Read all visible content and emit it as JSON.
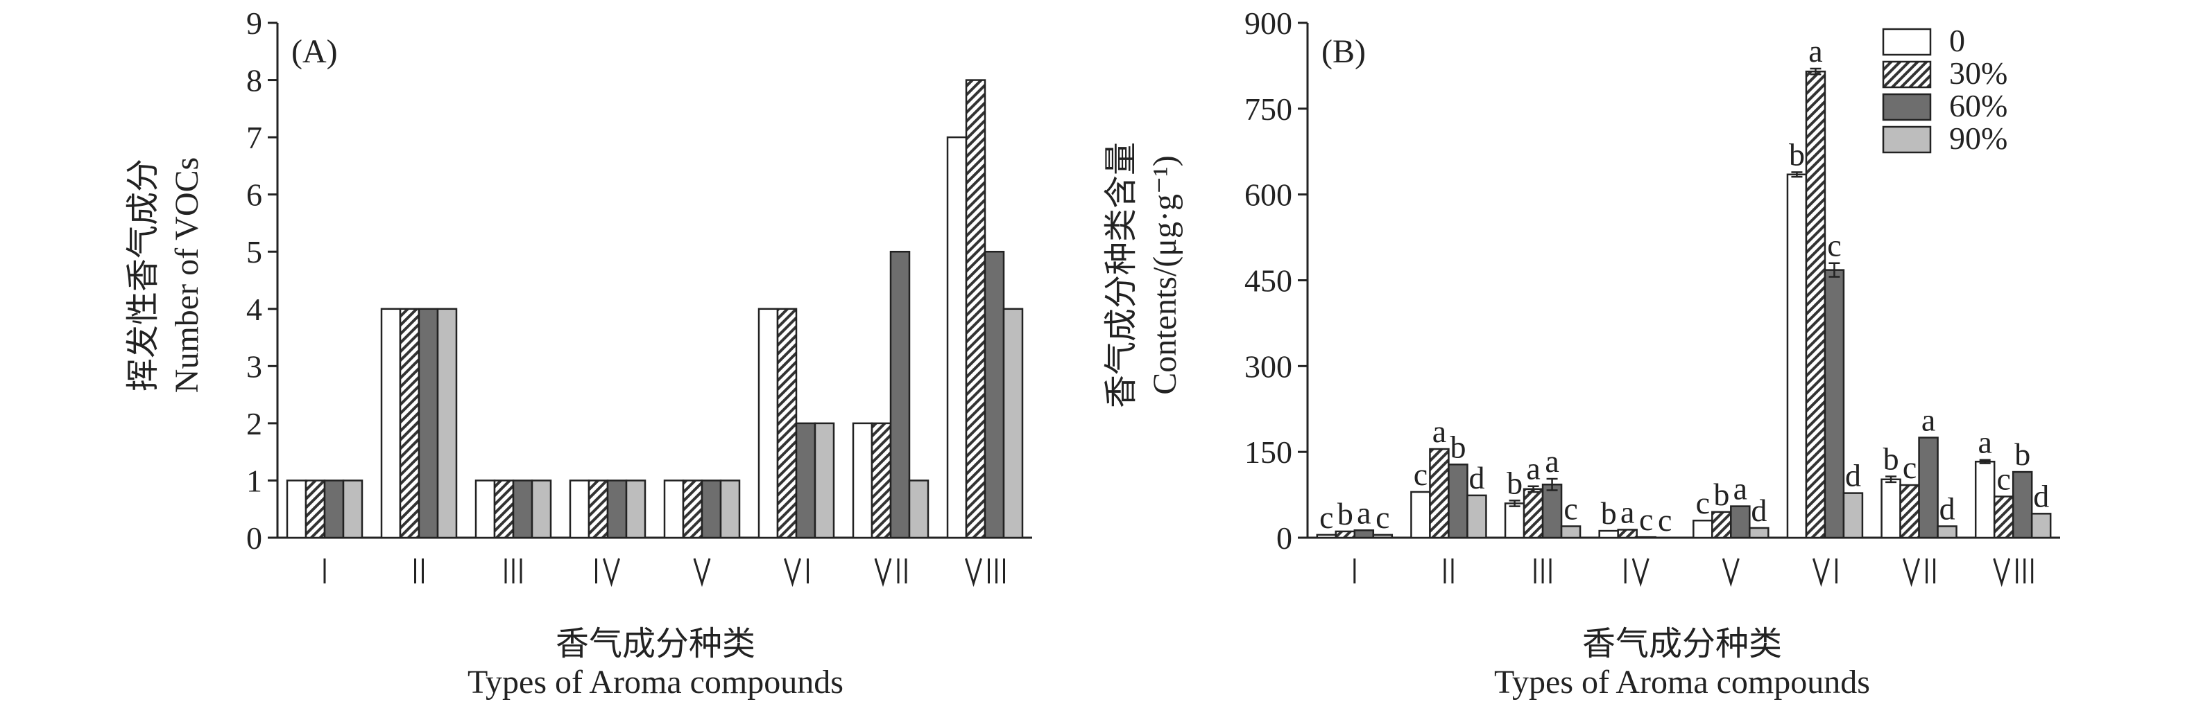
{
  "chart_data": [
    {
      "type": "bar",
      "panel_label": "(A)",
      "ylabel_cn": "挥发性香气成分",
      "ylabel_en": "Number of VOCs",
      "xlabel_cn": "香气成分种类",
      "xlabel_en": "Types of Aroma compounds",
      "categories": [
        "I",
        "II",
        "III",
        "IV",
        "V",
        "VI",
        "VII",
        "VIII"
      ],
      "ylim": [
        0,
        9
      ],
      "yticks": [
        "0",
        "1",
        "2",
        "3",
        "4",
        "5",
        "6",
        "7",
        "8",
        "9"
      ],
      "series": [
        {
          "name": "0",
          "values": [
            1,
            4,
            1,
            1,
            1,
            4,
            2,
            7
          ]
        },
        {
          "name": "30%",
          "values": [
            1,
            4,
            1,
            1,
            1,
            4,
            2,
            8
          ]
        },
        {
          "name": "60%",
          "values": [
            1,
            4,
            1,
            1,
            1,
            2,
            5,
            5
          ]
        },
        {
          "name": "90%",
          "values": [
            1,
            4,
            1,
            1,
            1,
            2,
            1,
            4
          ]
        }
      ]
    },
    {
      "type": "bar",
      "panel_label": "(B)",
      "ylabel_cn": "香气成分种类含量",
      "ylabel_en": "Contents/(μg·g⁻¹)",
      "xlabel_cn": "香气成分种类",
      "xlabel_en": "Types of Aroma compounds",
      "categories": [
        "I",
        "II",
        "III",
        "IV",
        "V",
        "VI",
        "VII",
        "VIII"
      ],
      "ylim": [
        0,
        900
      ],
      "yticks": [
        "0",
        "150",
        "300",
        "450",
        "600",
        "750",
        "900"
      ],
      "legend_position": "top-right",
      "series": [
        {
          "name": "0",
          "values": [
            5,
            80,
            60,
            12,
            30,
            635,
            102,
            133
          ],
          "errors": [
            0,
            0,
            5,
            0,
            0,
            4,
            5,
            3
          ],
          "letters": [
            "c",
            "c",
            "b",
            "b",
            "c",
            "b",
            "b",
            "a"
          ]
        },
        {
          "name": "30%",
          "values": [
            11,
            155,
            85,
            14,
            45,
            815,
            92,
            72
          ],
          "errors": [
            0,
            0,
            5,
            0,
            0,
            5,
            0,
            0
          ],
          "letters": [
            "b",
            "a",
            "a",
            "a",
            "b",
            "a",
            "c",
            "c"
          ]
        },
        {
          "name": "60%",
          "values": [
            13,
            128,
            93,
            1,
            55,
            468,
            175,
            115
          ],
          "errors": [
            0,
            0,
            10,
            0,
            0,
            12,
            0,
            0
          ],
          "letters": [
            "a",
            "b",
            "a",
            "c",
            "a",
            "c",
            "a",
            "b"
          ]
        },
        {
          "name": "90%",
          "values": [
            5,
            74,
            20,
            0,
            17,
            78,
            20,
            42
          ],
          "errors": [
            0,
            0,
            0,
            0,
            0,
            0,
            0,
            0
          ],
          "letters": [
            "c",
            "d",
            "c",
            "c",
            "d",
            "d",
            "d",
            "d"
          ]
        }
      ]
    }
  ]
}
